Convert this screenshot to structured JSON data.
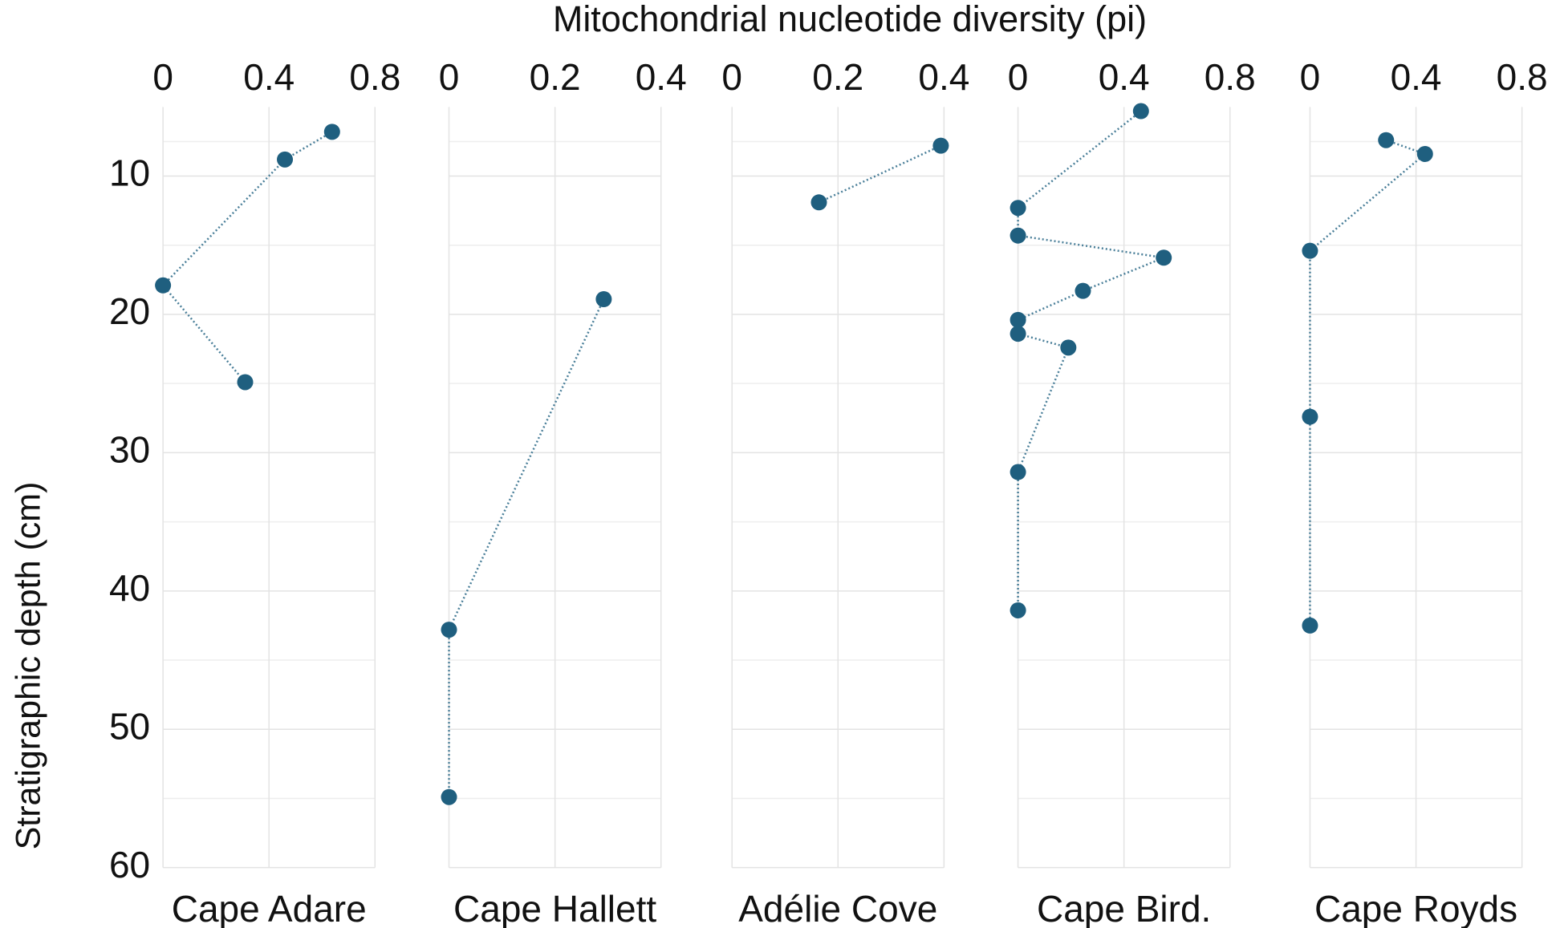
{
  "x_axis_title": "Mitochondrial nucleotide diversity (pi)",
  "y_axis_title": "Stratigraphic depth (cm)",
  "chart_data": [
    {
      "type": "line",
      "xlabel": "Cape Adare",
      "color": "#1f5f7f",
      "grid": true,
      "xlim": [
        0,
        0.8
      ],
      "xticks": [
        0,
        0.4,
        0.8
      ],
      "ylim": [
        5,
        60
      ],
      "yticks": [
        10,
        20,
        30,
        40,
        50,
        60
      ],
      "y_reversed": true,
      "x": [
        0.638,
        0.46,
        0,
        0.31
      ],
      "y": [
        6.8,
        8.8,
        17.9,
        24.9
      ]
    },
    {
      "type": "line",
      "xlabel": "Cape Hallett",
      "color": "#1f5f7f",
      "grid": true,
      "xlim": [
        0,
        0.4
      ],
      "xticks": [
        0,
        0.2,
        0.4
      ],
      "ylim": [
        5,
        60
      ],
      "y_reversed": true,
      "x": [
        0.292,
        0,
        0
      ],
      "y": [
        18.9,
        42.8,
        54.9
      ]
    },
    {
      "type": "line",
      "xlabel": "Adélie Cove",
      "color": "#1f5f7f",
      "grid": true,
      "xlim": [
        0,
        0.4
      ],
      "xticks": [
        0,
        0.2,
        0.4
      ],
      "ylim": [
        5,
        60
      ],
      "y_reversed": true,
      "x": [
        0.394,
        0.164
      ],
      "y": [
        7.8,
        11.9
      ]
    },
    {
      "type": "line",
      "xlabel": "Cape Bird.",
      "color": "#1f5f7f",
      "grid": true,
      "xlim": [
        0,
        0.8
      ],
      "xticks": [
        0,
        0.4,
        0.8
      ],
      "ylim": [
        5,
        60
      ],
      "y_reversed": true,
      "x": [
        0.464,
        0,
        0,
        0.55,
        0.245,
        0,
        0,
        0.19,
        0,
        0
      ],
      "y": [
        5.3,
        12.3,
        14.3,
        15.9,
        18.3,
        20.4,
        21.4,
        22.4,
        31.4,
        41.4
      ]
    },
    {
      "type": "line",
      "xlabel": "Cape Royds",
      "color": "#1f5f7f",
      "grid": true,
      "xlim": [
        0,
        0.8
      ],
      "xticks": [
        0,
        0.4,
        0.8
      ],
      "ylim": [
        5,
        60
      ],
      "y_reversed": true,
      "x": [
        0.287,
        0.434,
        0,
        0,
        0
      ],
      "y": [
        7.4,
        8.4,
        15.4,
        27.4,
        42.5
      ]
    }
  ]
}
